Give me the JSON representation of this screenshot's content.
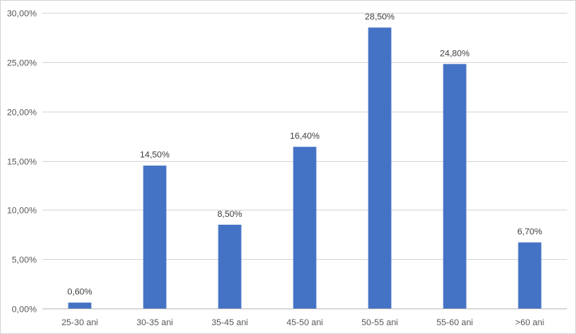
{
  "chart_data": {
    "type": "bar",
    "title": "",
    "xlabel": "",
    "ylabel": "",
    "categories": [
      "25-30 ani",
      "30-35 ani",
      "35-45 ani",
      "45-50 ani",
      "50-55 ani",
      "55-60 ani",
      ">60 ani"
    ],
    "values": [
      0.6,
      14.5,
      8.5,
      16.4,
      28.5,
      24.8,
      6.7
    ],
    "data_labels": [
      "0,60%",
      "14,50%",
      "8,50%",
      "16,40%",
      "28,50%",
      "24,80%",
      "6,70%"
    ],
    "ylim": [
      0,
      30
    ],
    "yticks": [
      0,
      5,
      10,
      15,
      20,
      25,
      30
    ],
    "ytick_labels": [
      "0,00%",
      "5,00%",
      "10,00%",
      "15,00%",
      "20,00%",
      "25,00%",
      "30,00%"
    ],
    "grid": true,
    "legend": "none",
    "colors": {
      "bar": "#4472c4",
      "grid": "#d9d9d9",
      "axis": "#bfbfbf",
      "text": "#595959"
    }
  }
}
